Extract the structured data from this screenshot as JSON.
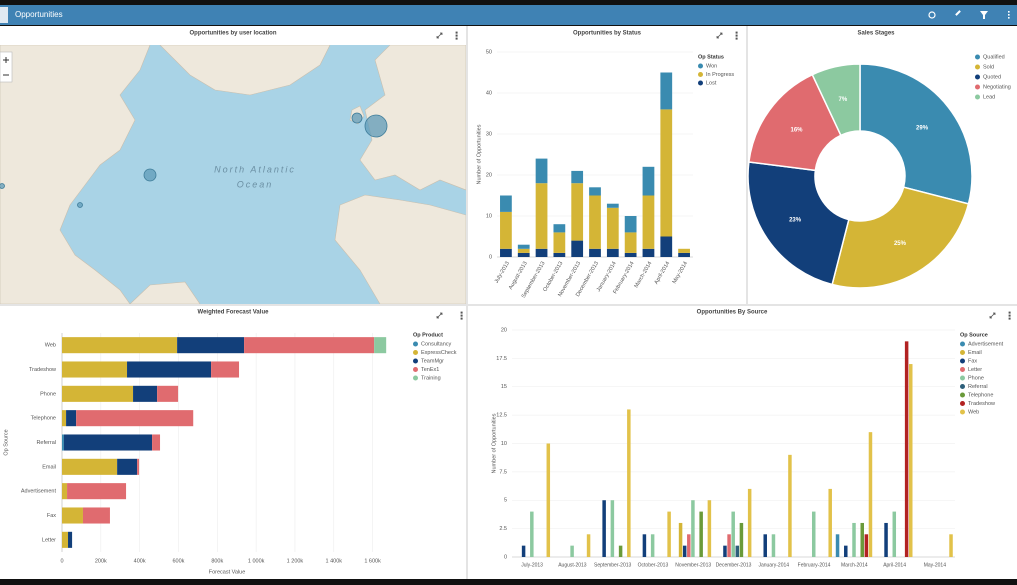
{
  "header": {
    "title": "Opportunities"
  },
  "map": {
    "title": "Opportunities by user location",
    "labels": [
      "North Atlantic",
      "Ocean"
    ]
  },
  "chart_data": [
    {
      "type": "bar",
      "stacked": true,
      "title": "Opportunities by Status",
      "categories": [
        "July-2013",
        "August-2013",
        "September-2013",
        "October-2013",
        "November-2013",
        "December-2013",
        "January-2014",
        "February-2014",
        "March-2014",
        "April-2014",
        "May-2014"
      ],
      "series": [
        {
          "name": "Lost",
          "color": "#123f7a",
          "values": [
            2,
            1,
            2,
            1,
            4,
            2,
            2,
            1,
            2,
            5,
            1
          ]
        },
        {
          "name": "In Progress",
          "color": "#d4b536",
          "values": [
            9,
            1,
            16,
            5,
            14,
            13,
            10,
            5,
            13,
            31,
            1
          ]
        },
        {
          "name": "Won",
          "color": "#3a8bb0",
          "values": [
            4,
            1,
            6,
            2,
            3,
            2,
            1,
            4,
            7,
            9,
            0
          ]
        }
      ],
      "legend_order": [
        "Won",
        "In Progress",
        "Lost"
      ],
      "legend_title": "Op Status",
      "y_label": "Number of Opportunities",
      "ylim": [
        0,
        50
      ],
      "yticks": [
        0,
        10,
        20,
        30,
        40,
        50
      ],
      "grid": true
    },
    {
      "type": "pie",
      "donut": true,
      "title": "Sales Stages",
      "categories": [
        "Qualified",
        "Sold",
        "Quoted",
        "Negotiating",
        "Lead"
      ],
      "values": [
        29,
        25,
        23,
        16,
        7
      ],
      "value_labels": [
        "29%",
        "25%",
        "23%",
        "16%",
        "7%"
      ],
      "colors": [
        "#3a8bb0",
        "#d4b536",
        "#123f7a",
        "#e06b6f",
        "#8cc9a0"
      ]
    },
    {
      "type": "barh",
      "stacked": true,
      "title": "Weighted Forecast Value",
      "categories": [
        "Web",
        "Tradeshow",
        "Phone",
        "Telephone",
        "Referral",
        "Email",
        "Advertisement",
        "Fax",
        "Letter"
      ],
      "series": [
        {
          "name": "Consultancy",
          "color": "#3a8bb0",
          "values": [
            0,
            0,
            0,
            0,
            10000,
            0,
            0,
            0,
            0
          ]
        },
        {
          "name": "ExpressCheck",
          "color": "#d4b536",
          "values": [
            593000,
            335000,
            366000,
            21000,
            0,
            284000,
            26000,
            108000,
            31000
          ]
        },
        {
          "name": "TeamMgr",
          "color": "#123f7a",
          "values": [
            345000,
            433000,
            124000,
            52000,
            454000,
            103000,
            0,
            0,
            21000
          ]
        },
        {
          "name": "TenEx1",
          "color": "#e06b6f",
          "values": [
            670000,
            144000,
            108000,
            603000,
            41000,
            10000,
            304000,
            139000,
            0
          ]
        },
        {
          "name": "Training",
          "color": "#8cc9a0",
          "values": [
            62000,
            0,
            0,
            0,
            0,
            0,
            0,
            0,
            0
          ]
        }
      ],
      "legend_title": "Op Product",
      "x_label": "Forecast Value",
      "y_label": "Op Source",
      "xlim": [
        0,
        1700000
      ],
      "xticks": [
        0,
        {
          "value": 200000,
          "label": "200k"
        },
        {
          "value": 400000,
          "label": "400k"
        },
        {
          "value": 600000,
          "label": "600k"
        },
        {
          "value": 800000,
          "label": "800k"
        },
        {
          "value": 1000000,
          "label": "1 000k"
        },
        {
          "value": 1200000,
          "label": "1 200k"
        },
        {
          "value": 1400000,
          "label": "1 400k"
        },
        {
          "value": 1600000,
          "label": "1 600k"
        }
      ],
      "grid": true
    },
    {
      "type": "bar",
      "stacked": false,
      "title": "Opportunities By Source",
      "categories": [
        "July-2013",
        "August-2013",
        "September-2013",
        "October-2013",
        "November-2013",
        "December-2013",
        "January-2014",
        "February-2014",
        "March-2014",
        "April-2014",
        "May-2014"
      ],
      "series": [
        {
          "name": "Advertisement",
          "color": "#3a8bb0",
          "values": [
            0,
            0,
            0,
            0,
            0,
            0,
            0,
            0,
            2,
            0,
            0
          ]
        },
        {
          "name": "Email",
          "color": "#d4b536",
          "values": [
            0,
            0,
            0,
            0,
            3,
            0,
            0,
            0,
            0,
            0,
            0
          ]
        },
        {
          "name": "Fax",
          "color": "#123f7a",
          "values": [
            1,
            0,
            5,
            2,
            1,
            1,
            2,
            0,
            1,
            3,
            0
          ]
        },
        {
          "name": "Letter",
          "color": "#e06b6f",
          "values": [
            0,
            0,
            0,
            0,
            2,
            2,
            0,
            0,
            0,
            0,
            0
          ]
        },
        {
          "name": "Phone",
          "color": "#8cc9a0",
          "values": [
            4,
            1,
            5,
            2,
            5,
            4,
            2,
            4,
            3,
            4,
            0
          ]
        },
        {
          "name": "Referral",
          "color": "#2d5f7a",
          "values": [
            0,
            0,
            0,
            0,
            0,
            1,
            0,
            0,
            0,
            0,
            0
          ]
        },
        {
          "name": "Telephone",
          "color": "#6a9a3a",
          "values": [
            0,
            0,
            1,
            0,
            4,
            3,
            0,
            0,
            3,
            0,
            0
          ]
        },
        {
          "name": "Tradeshow",
          "color": "#b22222",
          "values": [
            0,
            0,
            0,
            0,
            0,
            0,
            0,
            0,
            2,
            19,
            0
          ]
        },
        {
          "name": "Web",
          "color": "#e2c24a",
          "values": [
            10,
            2,
            13,
            4,
            5,
            6,
            9,
            6,
            11,
            17,
            2
          ]
        }
      ],
      "legend_title": "Op Source",
      "y_label": "Number of Opportunities",
      "ylim": [
        0,
        20
      ],
      "yticks": [
        0,
        2.5,
        5,
        7.5,
        10,
        12.5,
        15,
        17.5,
        20
      ],
      "grid": true
    }
  ]
}
